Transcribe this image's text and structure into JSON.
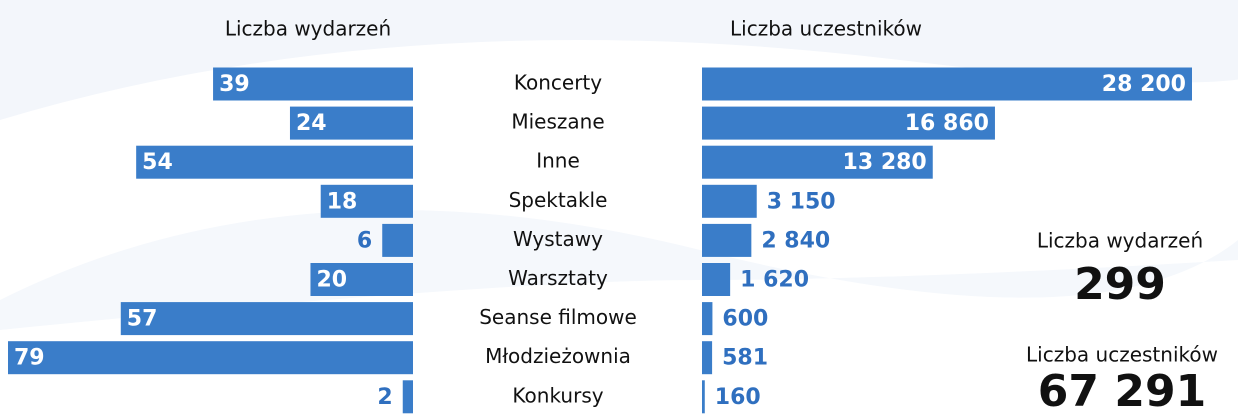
{
  "chart_data": [
    {
      "type": "bar",
      "title": "Liczba wydarzeń",
      "categories": [
        "Koncerty",
        "Mieszane",
        "Inne",
        "Spektakle",
        "Wystawy",
        "Warsztaty",
        "Seanse filmowe",
        "Młodzieżownia",
        "Konkursy"
      ],
      "values": [
        39,
        24,
        54,
        18,
        6,
        20,
        57,
        79,
        2
      ],
      "color": "#3a7dc9"
    },
    {
      "type": "bar",
      "title": "Liczba uczestników",
      "values": [
        28200,
        16860,
        13280,
        3150,
        2840,
        1620,
        600,
        581,
        160
      ],
      "value_labels": [
        "28 200",
        "16 860",
        "13 280",
        "3 150",
        "2 840",
        "1 620",
        "600",
        "581",
        "160"
      ],
      "color": "#3a7dc9"
    }
  ],
  "summary": [
    {
      "label": "Liczba wydarzeń",
      "value": 299
    },
    {
      "label": "Liczba uczestników",
      "value": 67291,
      "value_label": "67 291"
    }
  ]
}
